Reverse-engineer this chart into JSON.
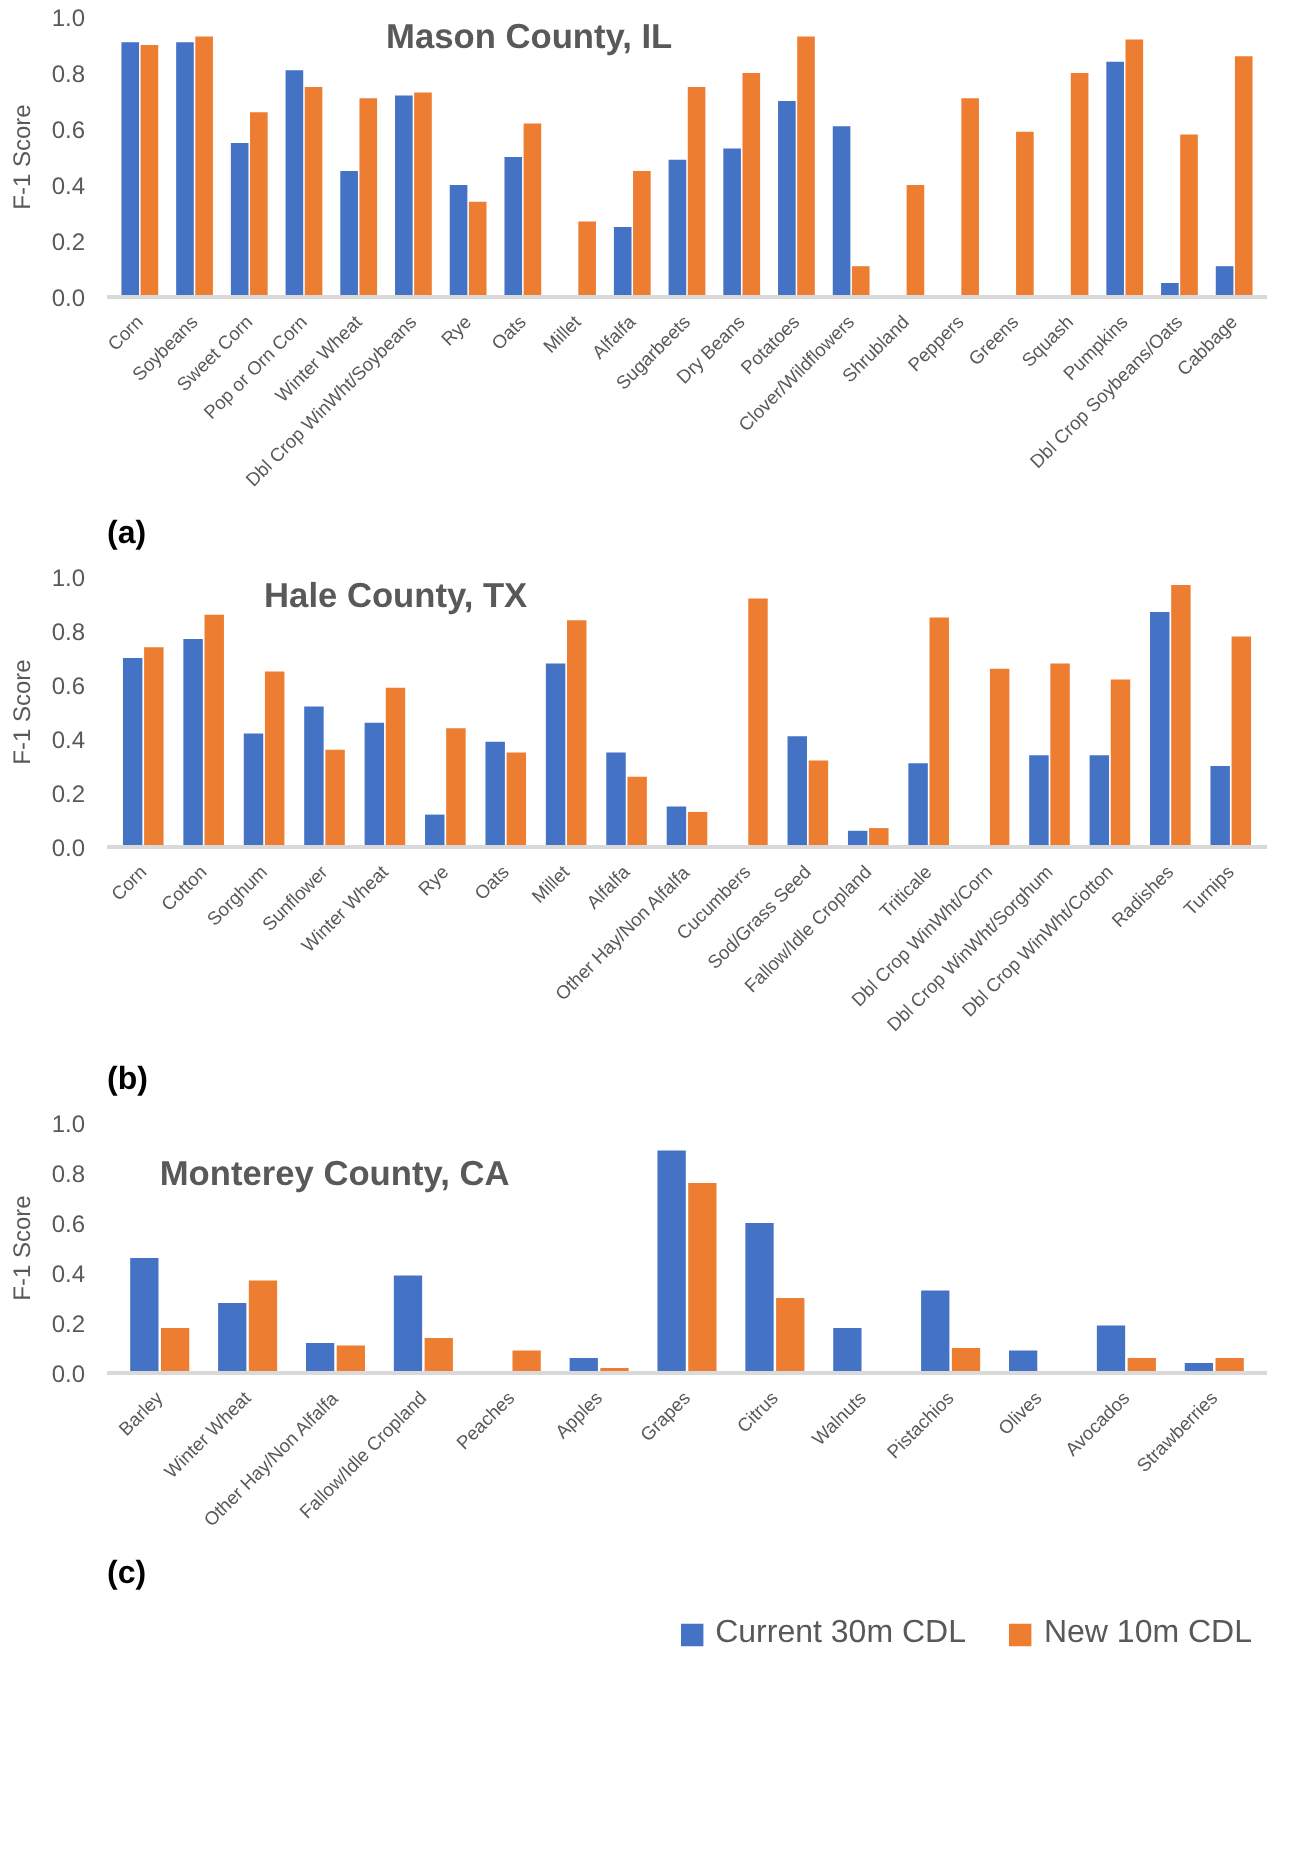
{
  "chart_data": [
    {
      "type": "bar",
      "title": "Mason County, IL",
      "ylabel": "F-1 Score",
      "annotations": [
        "(a)"
      ],
      "grid": false,
      "categories": [
        "Corn",
        "Soybeans",
        "Sweet Corn",
        "Pop or Orn Corn",
        "Winter Wheat",
        "Dbl Crop WinWht/Soybeans",
        "Rye",
        "Oats",
        "Millet",
        "Alfalfa",
        "Sugarbeets",
        "Dry Beans",
        "Potatoes",
        "Clover/Wildflowers",
        "Shrubland",
        "Peppers",
        "Greens",
        "Squash",
        "Pumpkins",
        "Dbl Crop Soybeans/Oats",
        "Cabbage"
      ],
      "ylim": [
        0,
        1
      ],
      "yticks": [
        {
          "value": 0,
          "label": "0.0"
        },
        {
          "value": 0.2,
          "label": "0.2"
        },
        {
          "value": 0.4,
          "label": "0.4"
        },
        {
          "value": 0.6,
          "label": "0.6"
        },
        {
          "value": 0.8,
          "label": "0.8"
        },
        {
          "value": 1,
          "label": "1.0"
        }
      ],
      "series": [
        {
          "color": "#4472c4",
          "values": [
            0.91,
            0.91,
            0.55,
            0.81,
            0.45,
            0.72,
            0.4,
            0.5,
            null,
            0.25,
            0.49,
            0.53,
            0.7,
            0.61,
            null,
            null,
            null,
            null,
            0.84,
            0.05,
            0.11
          ]
        },
        {
          "color": "#ed7d31",
          "values": [
            0.9,
            0.93,
            0.66,
            0.75,
            0.71,
            0.73,
            0.34,
            0.62,
            0.27,
            0.45,
            0.75,
            0.8,
            0.93,
            0.11,
            0.4,
            0.71,
            0.59,
            0.8,
            0.92,
            0.58,
            0.86
          ]
        }
      ]
    },
    {
      "type": "bar",
      "title": "Hale County, TX",
      "ylabel": "F-1 Score",
      "annotations": [
        "(b)"
      ],
      "grid": false,
      "categories": [
        "Corn",
        "Cotton",
        "Sorghum",
        "Sunflower",
        "Winter Wheat",
        "Rye",
        "Oats",
        "Millet",
        "Alfalfa",
        "Other Hay/Non Alfalfa",
        "Cucumbers",
        "Sod/Grass Seed",
        "Fallow/Idle Cropland",
        "Triticale",
        "Dbl Crop WinWht/Corn",
        "Dbl Crop WinWht/Sorghum",
        "Dbl Crop WinWht/Cotton",
        "Radishes",
        "Turnips"
      ],
      "ylim": [
        0,
        1
      ],
      "yticks": [
        {
          "value": 0,
          "label": "0.0"
        },
        {
          "value": 0.2,
          "label": "0.2"
        },
        {
          "value": 0.4,
          "label": "0.4"
        },
        {
          "value": 0.6,
          "label": "0.6"
        },
        {
          "value": 0.8,
          "label": "0.8"
        },
        {
          "value": 1,
          "label": "1.0"
        }
      ],
      "series": [
        {
          "color": "#4472c4",
          "values": [
            0.7,
            0.77,
            0.42,
            0.52,
            0.46,
            0.12,
            0.39,
            0.68,
            0.35,
            0.15,
            null,
            0.41,
            0.06,
            0.31,
            null,
            0.34,
            0.34,
            0.87,
            0.3
          ]
        },
        {
          "color": "#ed7d31",
          "values": [
            0.74,
            0.86,
            0.65,
            0.36,
            0.59,
            0.44,
            0.35,
            0.84,
            0.26,
            0.13,
            0.92,
            0.32,
            0.07,
            0.85,
            0.66,
            0.68,
            0.62,
            0.97,
            0.78
          ]
        }
      ]
    },
    {
      "type": "bar",
      "title": "Monterey County, CA",
      "ylabel": "F-1 Score",
      "annotations": [
        "(c)"
      ],
      "grid": false,
      "legend": "bottom",
      "categories": [
        "Barley",
        "Winter Wheat",
        "Other Hay/Non Alfalfa",
        "Fallow/Idle Cropland",
        "Peaches",
        "Apples",
        "Grapes",
        "Citrus",
        "Walnuts",
        "Pistachios",
        "Olives",
        "Avocados",
        "Strawberries"
      ],
      "ylim": [
        0,
        1
      ],
      "yticks": [
        {
          "value": 0,
          "label": "0.0"
        },
        {
          "value": 0.2,
          "label": "0.2"
        },
        {
          "value": 0.4,
          "label": "0.4"
        },
        {
          "value": 0.6,
          "label": "0.6"
        },
        {
          "value": 0.8,
          "label": "0.8"
        },
        {
          "value": 1,
          "label": "1.0"
        }
      ],
      "series": [
        {
          "name": "Current 30m CDL",
          "color": "#4472c4",
          "values": [
            0.46,
            0.28,
            0.12,
            0.39,
            null,
            0.06,
            0.89,
            0.6,
            0.18,
            0.33,
            0.09,
            0.19,
            0.04
          ]
        },
        {
          "name": "New 10m CDL",
          "color": "#ed7d31",
          "values": [
            0.18,
            0.37,
            0.11,
            0.14,
            0.09,
            0.02,
            0.76,
            0.3,
            null,
            0.1,
            null,
            0.06,
            0.06
          ]
        }
      ]
    }
  ]
}
